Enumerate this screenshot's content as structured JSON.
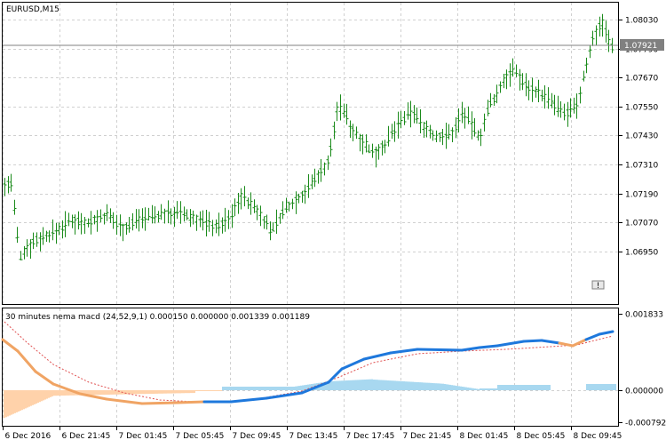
{
  "main_chart": {
    "symbol_label": "EURUSD,M15",
    "price_ticks": [
      "1.08030",
      "1.07790",
      "1.07670",
      "1.07550",
      "1.07430",
      "1.07310",
      "1.07190",
      "1.07070",
      "1.06950"
    ],
    "current_price": "1.07921",
    "event_marker": "!",
    "colors": {
      "bar": "#1a8a1a",
      "grid": "#c8c8c8",
      "current_line": "#808080",
      "current_badge": "#808080"
    }
  },
  "indicator": {
    "label": "30 minutes nema macd (24,52,9,1) 0.000150 0.000000 0.001339 0.001189",
    "ticks": [
      "0.001833",
      "0.000000",
      "-0.000792"
    ],
    "colors": {
      "macd_up": "#1e78dc",
      "macd_down": "#f0a464",
      "signal": "#e05050",
      "hist_pos": "#a8d8f0",
      "hist_neg": "#ffd2aa"
    }
  },
  "time_axis": {
    "labels": [
      "6 Dec 2016",
      "6 Dec 21:45",
      "7 Dec 01:45",
      "7 Dec 05:45",
      "7 Dec 09:45",
      "7 Dec 13:45",
      "7 Dec 17:45",
      "7 Dec 21:45",
      "8 Dec 01:45",
      "8 Dec 05:45",
      "8 Dec 09:45"
    ]
  }
}
